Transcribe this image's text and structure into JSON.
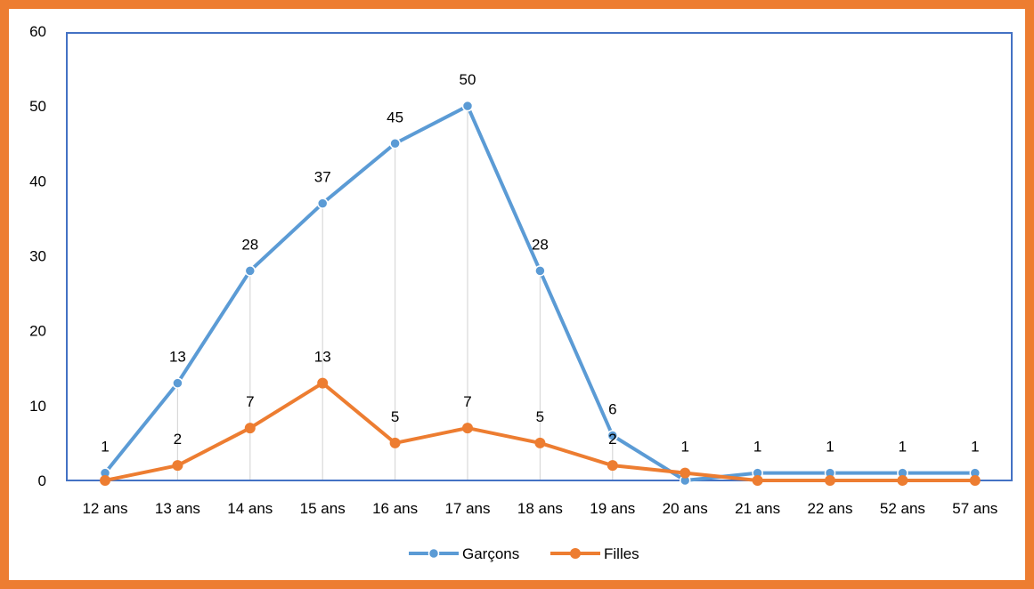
{
  "colors": {
    "frame": "#ED7D31",
    "plot_border": "#4472C4",
    "garcons": "#5B9BD5",
    "filles": "#ED7D31",
    "drop_lines": "#D9D9D9"
  },
  "chart_data": {
    "type": "line",
    "categories": [
      "12 ans",
      "13 ans",
      "14 ans",
      "15 ans",
      "16 ans",
      "17 ans",
      "18 ans",
      "19 ans",
      "20 ans",
      "21 ans",
      "22 ans",
      "52 ans",
      "57 ans"
    ],
    "series": [
      {
        "name": "Garçons",
        "values": [
          1,
          13,
          28,
          37,
          45,
          50,
          28,
          6,
          0,
          1,
          1,
          1,
          1
        ],
        "labels": [
          "1",
          "13",
          "28",
          "37",
          "45",
          "50",
          "28",
          "6",
          "",
          "1",
          "1",
          "1",
          "1"
        ],
        "color": "#5B9BD5"
      },
      {
        "name": "Filles",
        "values": [
          0,
          2,
          7,
          13,
          5,
          7,
          5,
          2,
          1,
          0,
          0,
          0,
          0
        ],
        "labels": [
          "",
          "2",
          "7",
          "13",
          "5",
          "7",
          "5",
          "2",
          "1",
          "",
          "",
          "",
          ""
        ],
        "color": "#ED7D31"
      }
    ],
    "y_ticks": [
      0,
      10,
      20,
      30,
      40,
      50,
      60
    ],
    "ylim": [
      0,
      60
    ],
    "grid": false,
    "drop_lines": true,
    "legend_position": "bottom",
    "title": "",
    "xlabel": "",
    "ylabel": ""
  }
}
